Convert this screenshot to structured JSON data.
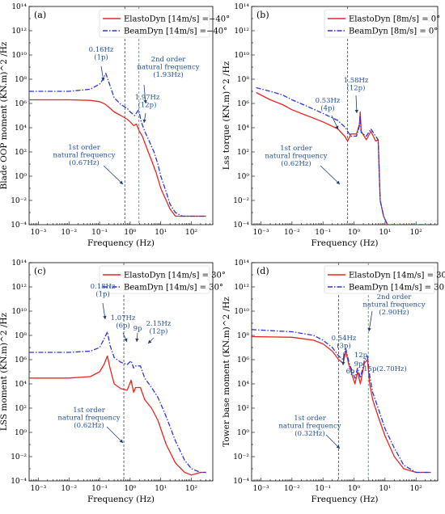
{
  "chart_data": [
    {
      "type": "line",
      "panel_label": "(a)",
      "xlabel": "Frequency (Hz)",
      "ylabel": "Blade OOP moment (KN.m)^2 /Hz",
      "xscale": "log",
      "yscale": "log",
      "xlim": [
        0.0005,
        500
      ],
      "ylim": [
        0.0001,
        100000000000000
      ],
      "xticks": [
        "10^-3",
        "10^-2",
        "10^-1",
        "10^0",
        "10^1",
        "10^2"
      ],
      "yticks": [
        "10^-4",
        "10^-2",
        "10^0",
        "10^2",
        "10^4",
        "10^6",
        "10^8",
        "10^10",
        "10^12",
        "10^14"
      ],
      "legend_position": "top-right",
      "series": [
        {
          "name": "ElastoDyn [14m/s] =−40°",
          "color": "#e8261f",
          "style": "solid",
          "x": [
            0.0005,
            0.01,
            0.05,
            0.1,
            0.15,
            0.2,
            0.3,
            0.5,
            0.8,
            1.0,
            1.3,
            1.6,
            2.0,
            2.5,
            3.5,
            5,
            7,
            10,
            15,
            20,
            30,
            50,
            80,
            300
          ],
          "y": [
            2000000,
            2000000,
            1800000,
            1400000,
            900000,
            500000,
            200000,
            100000,
            50000,
            30000,
            15000,
            20000,
            5000,
            2000,
            200,
            20,
            2,
            0.1,
            0.01,
            0.002,
            0.0005,
            0.0005,
            0.0005,
            0.0005
          ]
        },
        {
          "name": "BeamDyn [14m/s] =−40°",
          "color": "#2a35d8",
          "style": "dashdot",
          "x": [
            0.0005,
            0.01,
            0.05,
            0.1,
            0.13,
            0.16,
            0.2,
            0.3,
            0.5,
            0.8,
            1.0,
            1.4,
            1.9,
            2.3,
            3,
            4,
            6,
            8,
            10,
            15,
            20,
            30,
            50,
            80,
            300
          ],
          "y": [
            10000000,
            10000000,
            15000000,
            40000000,
            100000000,
            300000000,
            60000000,
            3000000,
            800000,
            400000,
            200000,
            100000,
            300000,
            30000,
            5000,
            1000,
            100,
            10,
            1,
            0.05,
            0.005,
            0.001,
            0.0005,
            0.0005,
            0.0005
          ]
        }
      ],
      "markers": [
        {
          "x": 0.67,
          "color": "#555555",
          "style": "dashed"
        },
        {
          "x": 1.93,
          "color": "#3aa84a",
          "style": "dashed"
        }
      ],
      "annotations": [
        {
          "lines": [
            "0.16Hz",
            "(1p)"
          ]
        },
        {
          "lines": [
            "2nd order",
            "natural frequency",
            "(1.93Hz)"
          ]
        },
        {
          "lines": [
            "1.97Hz",
            "(12p)"
          ]
        },
        {
          "lines": [
            "1st order",
            "natural frequency",
            "(0.67Hz)"
          ]
        }
      ]
    },
    {
      "type": "line",
      "panel_label": "(b)",
      "xlabel": "Frequency (Hz)",
      "ylabel": "Lss torque (KN.m)^2 /Hz",
      "xscale": "log",
      "yscale": "log",
      "xlim": [
        0.0005,
        500
      ],
      "ylim": [
        0.0001,
        100000000000000
      ],
      "xticks": [
        "10^-3",
        "10^-2",
        "10^-1",
        "10^0",
        "10^1",
        "10^2"
      ],
      "yticks": [
        "10^-4",
        "10^-2",
        "10^0",
        "10^2",
        "10^4",
        "10^6",
        "10^8",
        "10^10",
        "10^12",
        "10^14"
      ],
      "legend_position": "top-right",
      "series": [
        {
          "name": "ElastoDyn [8m/s] = 0°",
          "color": "#e8261f",
          "style": "solid",
          "x": [
            0.0007,
            0.002,
            0.005,
            0.01,
            0.03,
            0.1,
            0.3,
            0.5,
            0.62,
            0.8,
            1.2,
            1.5,
            1.58,
            1.7,
            2.5,
            3.5,
            5,
            6,
            7,
            9,
            12,
            20,
            50,
            100,
            300
          ],
          "y": [
            8000000,
            2000000,
            800000,
            300000,
            100000,
            30000,
            8000,
            2000,
            800,
            3000,
            3000,
            20000,
            200000,
            5000,
            1000,
            5000,
            800,
            1000,
            0.01,
            0.0005,
            0.0001,
            0.0001,
            0.0001,
            0.0001,
            0.0001
          ]
        },
        {
          "name": "BeamDyn [8m/s] = 0°",
          "color": "#2a35d8",
          "style": "dashdot",
          "x": [
            0.0007,
            0.002,
            0.005,
            0.01,
            0.03,
            0.1,
            0.3,
            0.53,
            0.62,
            0.8,
            1.2,
            1.5,
            1.58,
            1.7,
            2.5,
            3.5,
            5,
            6,
            7,
            9,
            12,
            20,
            50,
            100,
            300
          ],
          "y": [
            20000000,
            10000000,
            5000000,
            2000000,
            600000,
            150000,
            40000,
            10000,
            5000,
            2000,
            2000,
            15000,
            100000,
            4000,
            2000,
            8000,
            2000,
            1000,
            0.01,
            0.0005,
            0.0001,
            0.0001,
            0.0001,
            0.0001,
            0.0001
          ]
        }
      ],
      "markers": [
        {
          "x": 0.62,
          "color": "#555555",
          "style": "dashed"
        }
      ],
      "annotations": [
        {
          "lines": [
            "1.58Hz",
            "(12p)"
          ]
        },
        {
          "lines": [
            "0.53Hz",
            "(4p)"
          ]
        },
        {
          "lines": [
            "1st order",
            "natural frequency",
            "(0.62Hz)"
          ]
        }
      ]
    },
    {
      "type": "line",
      "panel_label": "(c)",
      "xlabel": "Frequency (Hz)",
      "ylabel": "LSS moment (KN.m)^2 /Hz",
      "xscale": "log",
      "yscale": "log",
      "xlim": [
        0.0005,
        500
      ],
      "ylim": [
        0.0001,
        100000000000000
      ],
      "xticks": [
        "10^-3",
        "10^-2",
        "10^-1",
        "10^0",
        "10^1",
        "10^2"
      ],
      "yticks": [
        "10^-4",
        "10^-2",
        "10^0",
        "10^2",
        "10^4",
        "10^6",
        "10^8",
        "10^10",
        "10^12",
        "10^14"
      ],
      "legend_position": "top-right",
      "series": [
        {
          "name": "ElastoDyn [14m/s] = 30°",
          "color": "#e8261f",
          "style": "solid",
          "x": [
            0.0005,
            0.01,
            0.05,
            0.1,
            0.14,
            0.18,
            0.22,
            0.3,
            0.5,
            0.8,
            1.07,
            1.3,
            1.5,
            2.15,
            3,
            5,
            8,
            15,
            30,
            60,
            100,
            200,
            300
          ],
          "y": [
            30000,
            30000,
            40000,
            100000,
            400000,
            2000000,
            200000,
            10000,
            4000,
            3000,
            20000,
            2000,
            5000,
            5000,
            500,
            100,
            10,
            0.1,
            0.003,
            0.0005,
            0.0003,
            0.0005,
            0.0005
          ]
        },
        {
          "name": "BeamDyn [14m/s] = 30°",
          "color": "#2a35d8",
          "style": "dashdot",
          "x": [
            0.0005,
            0.01,
            0.05,
            0.1,
            0.14,
            0.18,
            0.22,
            0.3,
            0.5,
            0.8,
            1.07,
            1.3,
            1.5,
            2.15,
            3,
            5,
            8,
            15,
            30,
            60,
            100,
            200,
            300
          ],
          "y": [
            4000000,
            4000000,
            5000000,
            10000000,
            50000000,
            200000000,
            15000000,
            1500000,
            600000,
            400000,
            800000,
            200000,
            300000,
            300000,
            30000,
            5000,
            800,
            20,
            0.2,
            0.005,
            0.001,
            0.0005,
            0.0005
          ]
        }
      ],
      "markers": [
        {
          "x": 0.62,
          "color": "#555555",
          "style": "dashed"
        }
      ],
      "annotations": [
        {
          "lines": [
            "0.18Hz",
            "(1p)"
          ]
        },
        {
          "lines": [
            "1.07Hz",
            "(6p)"
          ]
        },
        {
          "lines": [
            "9p"
          ]
        },
        {
          "lines": [
            "2.15Hz",
            "(12p)"
          ]
        },
        {
          "lines": [
            "1st order",
            "natural frequency",
            "(0.62Hz)"
          ]
        }
      ]
    },
    {
      "type": "line",
      "panel_label": "(d)",
      "xlabel": "Frequency (Hz)",
      "ylabel": "Tower base moment (KN.m)^2 /Hz",
      "xscale": "log",
      "yscale": "log",
      "xlim": [
        0.0005,
        500
      ],
      "ylim": [
        0.0001,
        100000000000000
      ],
      "xticks": [
        "10^-3",
        "10^-2",
        "10^-1",
        "10^0",
        "10^1",
        "10^2"
      ],
      "yticks": [
        "10^-4",
        "10^-2",
        "10^0",
        "10^2",
        "10^4",
        "10^6",
        "10^8",
        "10^10",
        "10^12",
        "10^14"
      ],
      "legend_position": "top-right",
      "series": [
        {
          "name": "ElastoDyn [14m/s] = 30°",
          "color": "#e8261f",
          "style": "solid",
          "x": [
            0.0005,
            0.01,
            0.05,
            0.1,
            0.2,
            0.32,
            0.45,
            0.54,
            0.7,
            1.07,
            1.3,
            1.6,
            2.15,
            2.7,
            3.2,
            4,
            6,
            10,
            20,
            40,
            100,
            300
          ],
          "y": [
            80000000,
            70000000,
            40000000,
            20000000,
            5000000,
            1000000,
            500000,
            5000000,
            300000,
            10000,
            100000,
            10000,
            500000,
            1000000,
            10000,
            500,
            20,
            0.5,
            0.01,
            0.001,
            0.0005,
            0.0005
          ]
        },
        {
          "name": "BeamDyn [14m/s] = 30°",
          "color": "#2a35d8",
          "style": "dashdot",
          "x": [
            0.0005,
            0.01,
            0.05,
            0.1,
            0.2,
            0.32,
            0.45,
            0.54,
            0.7,
            1.07,
            1.3,
            1.6,
            2.15,
            2.7,
            3.2,
            4,
            6,
            10,
            20,
            40,
            100,
            300
          ],
          "y": [
            300000000,
            200000000,
            100000000,
            40000000,
            10000000,
            2000000,
            1000000,
            8000000,
            500000,
            30000,
            200000,
            30000,
            800000,
            2000000,
            50000,
            2000,
            100,
            2,
            0.05,
            0.002,
            0.0005,
            0.0005
          ]
        }
      ],
      "markers": [
        {
          "x": 0.32,
          "color": "#555555",
          "style": "dashed"
        },
        {
          "x": 2.9,
          "color": "#3aa84a",
          "style": "dashed"
        }
      ],
      "annotations": [
        {
          "lines": [
            "2nd order",
            "natural frequency",
            "(2.90Hz)"
          ]
        },
        {
          "lines": [
            "0.54Hz",
            "(3p)"
          ]
        },
        {
          "lines": [
            "12p"
          ]
        },
        {
          "lines": [
            "9p"
          ]
        },
        {
          "lines": [
            "6p"
          ]
        },
        {
          "lines": [
            "15p(2.70Hz)"
          ]
        },
        {
          "lines": [
            "1st order",
            "natural frequency",
            "(0.32Hz)"
          ]
        }
      ]
    }
  ]
}
